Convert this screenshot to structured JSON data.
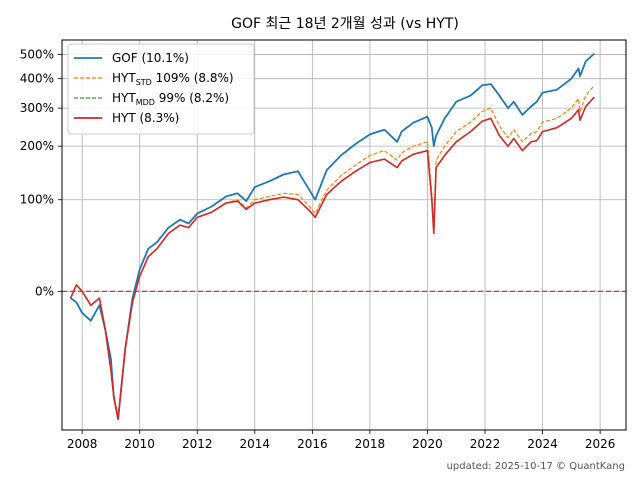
{
  "chart_data": {
    "type": "line",
    "title": "GOF 최근 18년 2개월 성과 (vs HYT)",
    "xlabel": "",
    "ylabel": "",
    "footer": "updated: 2025-10-17 © QuantKang",
    "x_ticks": [
      "2008",
      "2010",
      "2012",
      "2014",
      "2016",
      "2018",
      "2020",
      "2022",
      "2024",
      "2026"
    ],
    "y_ticks": [
      "0%",
      "100%",
      "200%",
      "300%",
      "400%",
      "500%"
    ],
    "y_tick_values": [
      0,
      100,
      200,
      300,
      400,
      500
    ],
    "xlim": [
      2007.3,
      2026.9
    ],
    "ylim": [
      -65,
      570
    ],
    "y_scale": "log(1+r)",
    "grid": true,
    "legend_position": "top-left",
    "reference_line": {
      "value": 0,
      "color": "#d62728",
      "style": "dashed"
    },
    "legend": [
      {
        "main": "GOF",
        "sub": "",
        "rest": " (10.1%)",
        "color": "#1f77b4",
        "dash": false
      },
      {
        "main": "HYT",
        "sub": "STD",
        "rest": " 109% (8.8%)",
        "color": "#ff7f0e",
        "dash": true
      },
      {
        "main": "HYT",
        "sub": "MDD",
        "rest": " 99% (8.2%)",
        "color": "#2ca02c",
        "dash": true
      },
      {
        "main": "HYT",
        "sub": "",
        "rest": " (8.3%)",
        "color": "#d62728",
        "dash": false
      }
    ],
    "x": [
      2007.6,
      2007.8,
      2008.0,
      2008.3,
      2008.6,
      2008.8,
      2009.0,
      2009.1,
      2009.25,
      2009.5,
      2009.75,
      2010.0,
      2010.3,
      2010.6,
      2011.0,
      2011.4,
      2011.7,
      2012.0,
      2012.5,
      2013.0,
      2013.4,
      2013.7,
      2014.0,
      2014.5,
      2015.0,
      2015.5,
      2015.9,
      2016.1,
      2016.5,
      2017.0,
      2017.5,
      2018.0,
      2018.5,
      2018.95,
      2019.1,
      2019.5,
      2020.0,
      2020.15,
      2020.22,
      2020.3,
      2020.6,
      2021.0,
      2021.5,
      2021.9,
      2022.2,
      2022.5,
      2022.8,
      2023.0,
      2023.3,
      2023.6,
      2023.8,
      2024.0,
      2024.5,
      2025.0,
      2025.25,
      2025.3,
      2025.5,
      2025.8
    ],
    "series": [
      {
        "name": "GOF",
        "color": "#1f77b4",
        "dash": false,
        "width": 1.8,
        "values": [
          -5,
          -8,
          -15,
          -20,
          -10,
          -25,
          -40,
          -55,
          -62,
          -35,
          -5,
          18,
          38,
          45,
          62,
          72,
          67,
          80,
          90,
          105,
          110,
          98,
          120,
          130,
          142,
          148,
          115,
          100,
          150,
          180,
          205,
          228,
          240,
          210,
          235,
          258,
          275,
          245,
          200,
          225,
          270,
          320,
          340,
          375,
          380,
          340,
          300,
          320,
          280,
          305,
          320,
          350,
          360,
          400,
          440,
          410,
          470,
          505
        ]
      },
      {
        "name": "HYT STD",
        "color": "#ff7f0e",
        "dash": true,
        "width": 1.2,
        "values": [
          -5,
          5,
          0,
          -10,
          -5,
          -25,
          -45,
          -55,
          -62,
          -35,
          -8,
          12,
          30,
          38,
          55,
          65,
          62,
          75,
          82,
          95,
          100,
          88,
          100,
          105,
          110,
          108,
          90,
          80,
          115,
          140,
          160,
          180,
          190,
          170,
          185,
          200,
          210,
          110,
          60,
          170,
          200,
          235,
          260,
          290,
          300,
          250,
          220,
          240,
          210,
          230,
          235,
          260,
          270,
          300,
          330,
          290,
          340,
          375
        ]
      },
      {
        "name": "HYT MDD",
        "color": "#2ca02c",
        "dash": true,
        "width": 1.2,
        "values": [
          -5,
          5,
          0,
          -10,
          -5,
          -25,
          -45,
          -55,
          -62,
          -35,
          -8,
          12,
          30,
          38,
          55,
          65,
          62,
          75,
          82,
          95,
          98,
          86,
          95,
          100,
          104,
          100,
          84,
          75,
          108,
          130,
          148,
          165,
          172,
          155,
          168,
          182,
          190,
          100,
          55,
          155,
          180,
          210,
          235,
          262,
          270,
          225,
          200,
          218,
          190,
          210,
          213,
          235,
          245,
          270,
          295,
          265,
          305,
          335
        ]
      },
      {
        "name": "HYT",
        "color": "#d62728",
        "dash": false,
        "width": 1.6,
        "values": [
          -5,
          5,
          0,
          -10,
          -5,
          -25,
          -45,
          -55,
          -62,
          -35,
          -8,
          12,
          30,
          38,
          55,
          65,
          62,
          75,
          82,
          95,
          98,
          86,
          95,
          100,
          104,
          100,
          84,
          75,
          108,
          130,
          148,
          165,
          172,
          155,
          168,
          182,
          190,
          100,
          55,
          155,
          180,
          210,
          235,
          262,
          270,
          225,
          200,
          218,
          190,
          210,
          213,
          235,
          245,
          270,
          295,
          265,
          305,
          335
        ]
      }
    ]
  }
}
